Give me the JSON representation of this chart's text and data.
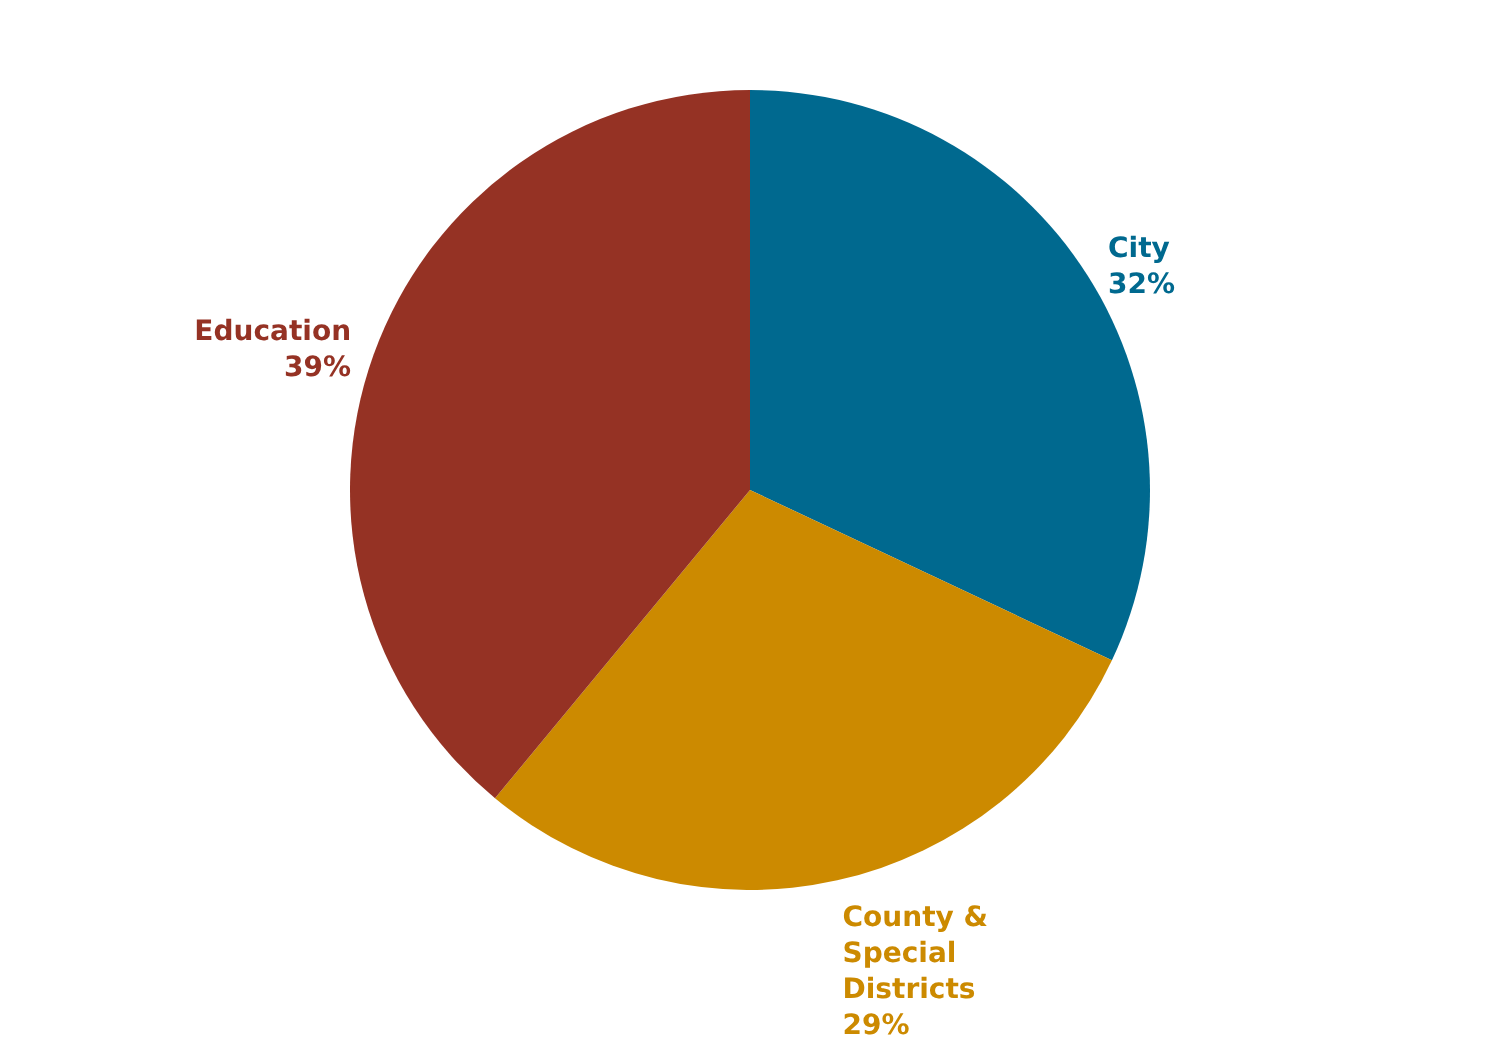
{
  "chart_data": {
    "type": "pie",
    "categories": [
      "City",
      "County & Special Districts",
      "Education"
    ],
    "values": [
      32,
      29,
      39
    ],
    "value_labels": [
      "32%",
      "29%",
      "39%"
    ],
    "colors": [
      "#00698f",
      "#cc8a00",
      "#953224"
    ]
  }
}
